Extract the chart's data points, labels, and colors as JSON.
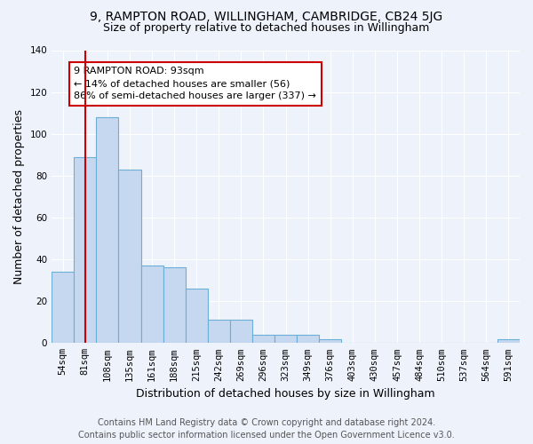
{
  "title": "9, RAMPTON ROAD, WILLINGHAM, CAMBRIDGE, CB24 5JG",
  "subtitle": "Size of property relative to detached houses in Willingham",
  "xlabel": "Distribution of detached houses by size in Willingham",
  "ylabel": "Number of detached properties",
  "bar_labels": [
    "54sqm",
    "81sqm",
    "108sqm",
    "135sqm",
    "161sqm",
    "188sqm",
    "215sqm",
    "242sqm",
    "269sqm",
    "296sqm",
    "323sqm",
    "349sqm",
    "376sqm",
    "403sqm",
    "430sqm",
    "457sqm",
    "484sqm",
    "510sqm",
    "537sqm",
    "564sqm",
    "591sqm"
  ],
  "bar_heights": [
    34,
    89,
    108,
    83,
    37,
    36,
    26,
    11,
    11,
    4,
    4,
    4,
    2,
    0,
    0,
    0,
    0,
    0,
    0,
    0,
    2
  ],
  "bar_color": "#c5d8f0",
  "bar_edge_color": "#6baed6",
  "vline_x": 1,
  "vline_color": "#cc0000",
  "annotation_text": "9 RAMPTON ROAD: 93sqm\n← 14% of detached houses are smaller (56)\n86% of semi-detached houses are larger (337) →",
  "annotation_box_color": "#ffffff",
  "annotation_box_edge": "#cc0000",
  "ylim": [
    0,
    140
  ],
  "yticks": [
    0,
    20,
    40,
    60,
    80,
    100,
    120,
    140
  ],
  "footer": "Contains HM Land Registry data © Crown copyright and database right 2024.\nContains public sector information licensed under the Open Government Licence v3.0.",
  "bg_color": "#eef2fb",
  "plot_bg_color": "#eef2fb",
  "grid_color": "#ffffff",
  "title_fontsize": 10,
  "subtitle_fontsize": 9,
  "axis_label_fontsize": 9,
  "tick_fontsize": 7.5,
  "footer_fontsize": 7
}
